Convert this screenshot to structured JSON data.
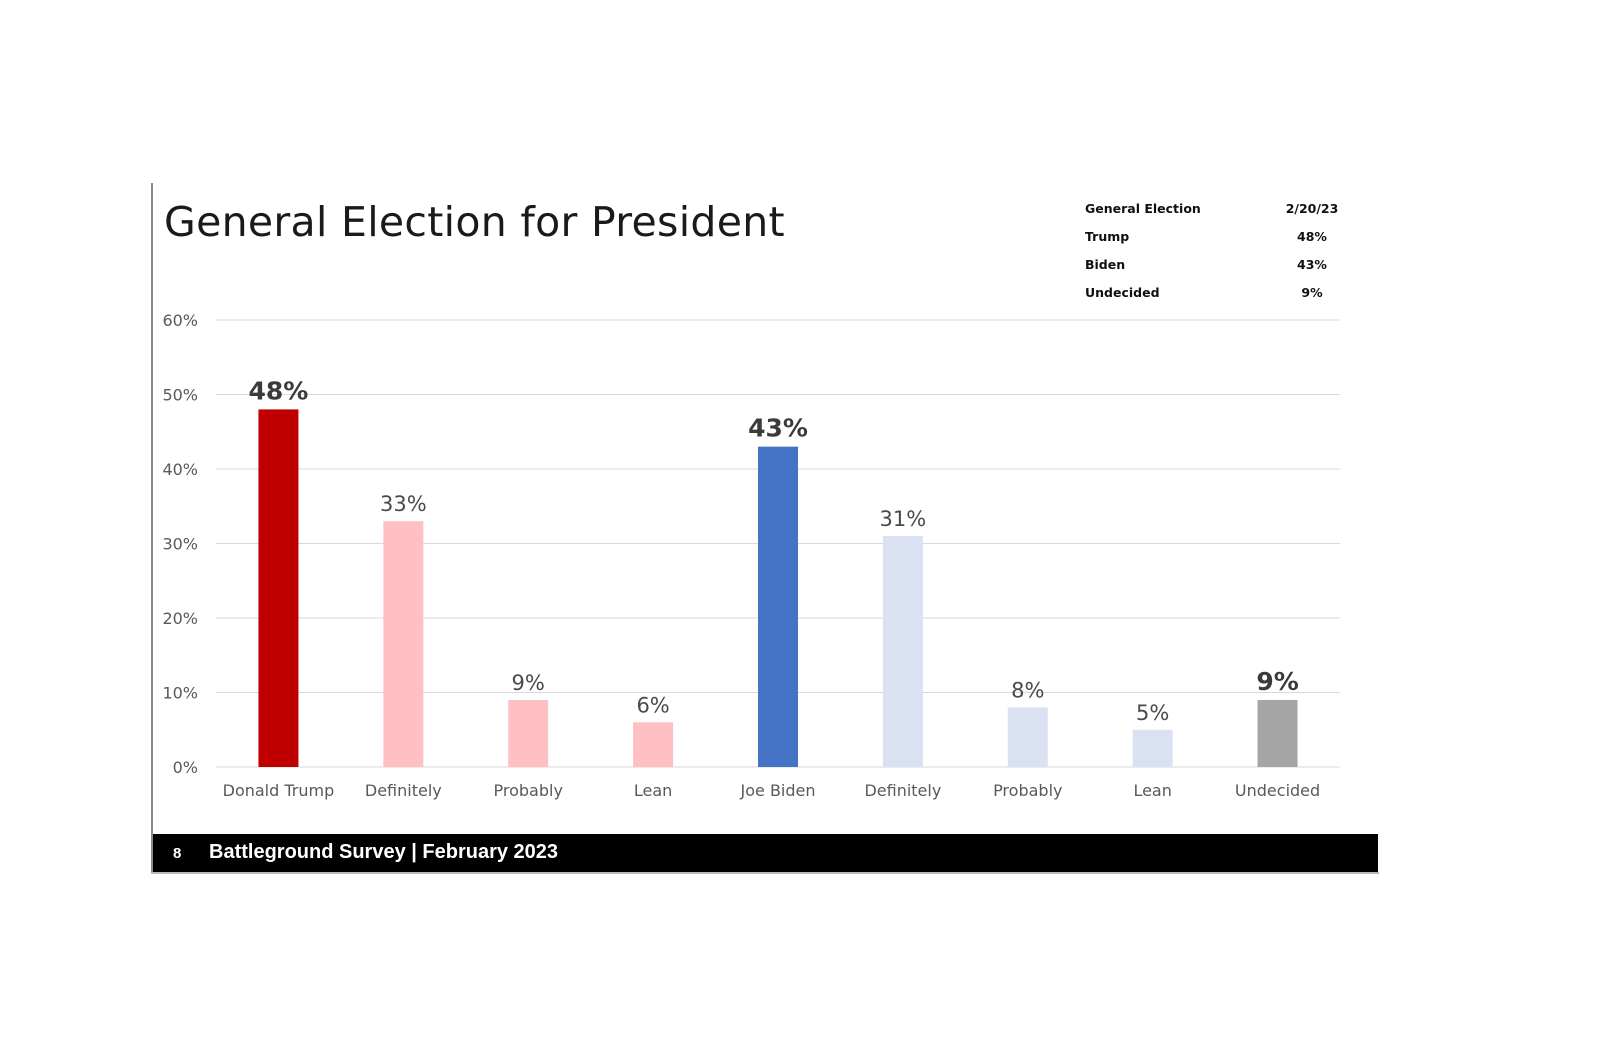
{
  "slide": {
    "title": "General Election for President",
    "summary_table": {
      "header": {
        "label": "General Election",
        "value": "2/20/23"
      },
      "rows": [
        {
          "label": "Trump",
          "value": "48%"
        },
        {
          "label": "Biden",
          "value": "43%"
        },
        {
          "label": "Undecided",
          "value": "9%"
        }
      ]
    },
    "footer": {
      "page_number": "8",
      "text": "Battleground Survey | February 2023"
    }
  },
  "colors": {
    "trump": "#c00000",
    "trump_light": "#ffc0c3",
    "biden": "#4472c4",
    "biden_light": "#d9e1f2",
    "undecided": "#a5a5a5",
    "grid": "#d9d9d9",
    "axis_text": "#595959"
  },
  "chart_data": {
    "type": "bar",
    "title": "",
    "xlabel": "",
    "ylabel": "",
    "ylim": [
      0,
      60
    ],
    "yticks": [
      "0%",
      "10%",
      "20%",
      "30%",
      "40%",
      "50%",
      "60%"
    ],
    "grid": true,
    "categories": [
      "Donald Trump",
      "Definitely",
      "Probably",
      "Lean",
      "Joe Biden",
      "Definitely",
      "Probably",
      "Lean",
      "Undecided"
    ],
    "values": [
      48,
      33,
      9,
      6,
      43,
      31,
      8,
      5,
      9
    ],
    "data_labels": [
      "48%",
      "33%",
      "9%",
      "6%",
      "43%",
      "31%",
      "8%",
      "5%",
      "9%"
    ],
    "label_emphasis": [
      true,
      false,
      false,
      false,
      true,
      false,
      false,
      false,
      true
    ],
    "bar_colors": [
      "trump",
      "trump_light",
      "trump_light",
      "trump_light",
      "biden",
      "biden_light",
      "biden_light",
      "biden_light",
      "undecided"
    ]
  }
}
